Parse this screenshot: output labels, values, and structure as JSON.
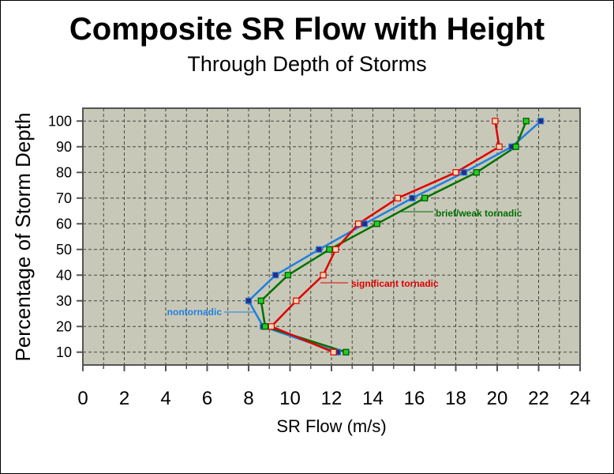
{
  "chart_data": {
    "type": "line",
    "title": "Composite SR Flow with Height",
    "subtitle": "Through Depth of Storms",
    "xlabel": "SR Flow (m/s)",
    "ylabel": "Percentage of Storm Depth",
    "xlim": [
      0,
      24
    ],
    "ylim": [
      5,
      105
    ],
    "xticks": [
      "0",
      "2",
      "4",
      "6",
      "8",
      "10",
      "12",
      "14",
      "16",
      "18",
      "20",
      "22",
      "24"
    ],
    "yticks": [
      "10",
      "20",
      "30",
      "40",
      "50",
      "60",
      "70",
      "80",
      "90",
      "100"
    ],
    "grid": true,
    "colors": {
      "nontornadic": "#1f7fe0",
      "significant": "#e00000",
      "brief": "#007000",
      "plot_bg": "#c8c8b8",
      "axis": "#555555"
    },
    "series": [
      {
        "name": "nontornadic",
        "color": "#1f7fe0",
        "x": [
          12.3,
          8.7,
          8.0,
          9.3,
          11.4,
          13.6,
          15.9,
          18.4,
          20.7,
          22.1
        ],
        "y": [
          10,
          20,
          30,
          40,
          50,
          60,
          70,
          80,
          90,
          100
        ]
      },
      {
        "name": "significant tornadic",
        "color": "#e00000",
        "x": [
          12.1,
          9.1,
          10.3,
          11.6,
          12.2,
          13.3,
          15.2,
          18.0,
          20.1,
          19.9
        ],
        "y": [
          10,
          20,
          30,
          40,
          50,
          60,
          70,
          80,
          90,
          100
        ]
      },
      {
        "name": "brief/weak tornadic",
        "color": "#007000",
        "x": [
          12.7,
          8.8,
          8.6,
          9.9,
          11.9,
          14.2,
          16.5,
          19.0,
          20.9,
          21.4
        ],
        "y": [
          10,
          20,
          30,
          40,
          50,
          60,
          70,
          80,
          90,
          100
        ]
      }
    ],
    "annotations": [
      {
        "text": "brief/weak tornadic",
        "series": "brief/weak tornadic",
        "color": "#007000"
      },
      {
        "text": "significant tornadic",
        "series": "significant tornadic",
        "color": "#e00000"
      },
      {
        "text": "nontornadic",
        "series": "nontornadic",
        "color": "#1f7fe0"
      }
    ]
  }
}
